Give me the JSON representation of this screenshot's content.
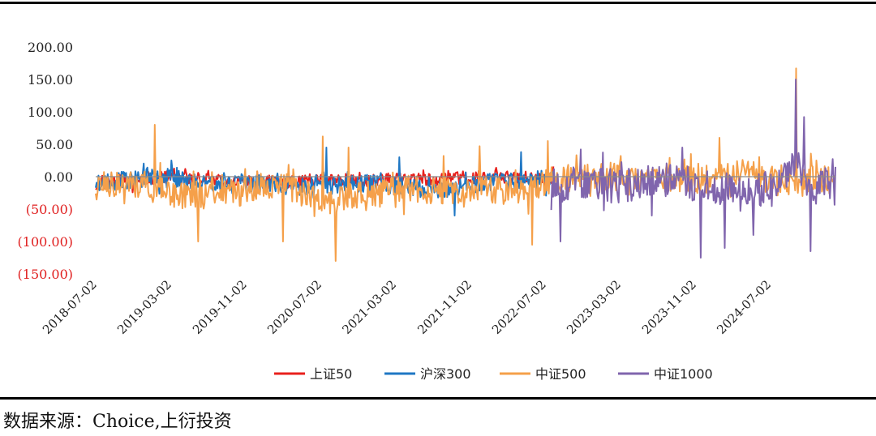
{
  "chart_data": {
    "type": "line",
    "title": "",
    "xlabel": "",
    "ylabel": "",
    "ylim": [
      -150,
      200
    ],
    "y_ticks": [
      {
        "value": 200,
        "label": "200.00",
        "color": "#222222"
      },
      {
        "value": 150,
        "label": "150.00",
        "color": "#222222"
      },
      {
        "value": 100,
        "label": "100.00",
        "color": "#222222"
      },
      {
        "value": 50,
        "label": "50.00",
        "color": "#222222"
      },
      {
        "value": 0,
        "label": "0.00",
        "color": "#222222"
      },
      {
        "value": -50,
        "label": "(50.00)",
        "color": "#e02020"
      },
      {
        "value": -100,
        "label": "(100.00)",
        "color": "#e02020"
      },
      {
        "value": -150,
        "label": "(150.00)",
        "color": "#e02020"
      }
    ],
    "x_ticks": [
      "2018-07-02",
      "2019-03-02",
      "2019-11-02",
      "2020-07-02",
      "2021-03-02",
      "2021-11-02",
      "2022-07-02",
      "2023-03-02",
      "2023-11-02",
      "2024-07-02"
    ],
    "x_range": [
      "2018-07-02",
      "2025-01-31"
    ],
    "grid": false,
    "legend_position": "bottom",
    "series": [
      {
        "name": "上证50",
        "color": "#e8201c",
        "start": "2018-07-02",
        "end": "2022-07-31",
        "noise": 10,
        "seed": 11,
        "base": [
          [
            0,
            -10
          ],
          [
            0.15,
            0
          ],
          [
            0.35,
            -10
          ],
          [
            0.5,
            -5
          ],
          [
            0.7,
            -5
          ],
          [
            0.85,
            0
          ],
          [
            1,
            -5
          ]
        ],
        "spikes": [
          [
            "2018-07-02",
            -20
          ],
          [
            "2019-04-20",
            12
          ],
          [
            "2020-07-10",
            15
          ],
          [
            "2021-06-01",
            10
          ],
          [
            "2022-05-01",
            8
          ]
        ]
      },
      {
        "name": "沪深300",
        "color": "#1f77c4",
        "start": "2018-07-02",
        "end": "2022-07-31",
        "noise": 14,
        "seed": 23,
        "base": [
          [
            0,
            -10
          ],
          [
            0.15,
            0
          ],
          [
            0.2,
            -8
          ],
          [
            0.32,
            -10
          ],
          [
            0.45,
            -15
          ],
          [
            0.6,
            -10
          ],
          [
            0.75,
            -20
          ],
          [
            0.9,
            -5
          ],
          [
            1,
            -5
          ]
        ],
        "spikes": [
          [
            "2019-03-05",
            25
          ],
          [
            "2020-07-20",
            45
          ],
          [
            "2021-03-15",
            30
          ],
          [
            "2021-09-10",
            -60
          ],
          [
            "2022-04-15",
            38
          ]
        ]
      },
      {
        "name": "中证500",
        "color": "#f5a04a",
        "start": "2018-07-02",
        "end": "2025-01-31",
        "noise": 22,
        "seed": 37,
        "base": [
          [
            0,
            -15
          ],
          [
            0.06,
            -12
          ],
          [
            0.12,
            -30
          ],
          [
            0.18,
            -25
          ],
          [
            0.25,
            -10
          ],
          [
            0.3,
            -35
          ],
          [
            0.36,
            -30
          ],
          [
            0.42,
            -20
          ],
          [
            0.5,
            -25
          ],
          [
            0.58,
            -18
          ],
          [
            0.62,
            -5
          ],
          [
            0.7,
            0
          ],
          [
            0.8,
            -5
          ],
          [
            0.88,
            5
          ],
          [
            0.93,
            -10
          ],
          [
            1,
            0
          ]
        ],
        "spikes": [
          [
            "2019-01-10",
            80
          ],
          [
            "2019-06-01",
            -100
          ],
          [
            "2020-03-01",
            -100
          ],
          [
            "2020-07-08",
            62
          ],
          [
            "2020-08-20",
            -130
          ],
          [
            "2020-10-01",
            45
          ],
          [
            "2021-08-05",
            32
          ],
          [
            "2021-12-01",
            47
          ],
          [
            "2022-05-20",
            -105
          ],
          [
            "2022-07-10",
            55
          ],
          [
            "2023-10-20",
            35
          ],
          [
            "2024-01-20",
            60
          ],
          [
            "2024-09-24",
            167
          ],
          [
            "2024-10-15",
            -30
          ],
          [
            "2024-12-01",
            25
          ]
        ]
      },
      {
        "name": "中证1000",
        "color": "#8065ad",
        "start": "2022-07-22",
        "end": "2025-01-31",
        "noise": 26,
        "seed": 53,
        "base": [
          [
            0,
            -15
          ],
          [
            0.1,
            -10
          ],
          [
            0.25,
            -15
          ],
          [
            0.4,
            -5
          ],
          [
            0.55,
            -15
          ],
          [
            0.7,
            -25
          ],
          [
            0.8,
            -10
          ],
          [
            0.87,
            20
          ],
          [
            0.92,
            -20
          ],
          [
            1,
            -5
          ]
        ],
        "spikes": [
          [
            "2022-08-20",
            -100
          ],
          [
            "2022-10-25",
            42
          ],
          [
            "2023-06-15",
            -60
          ],
          [
            "2023-09-20",
            45
          ],
          [
            "2023-11-20",
            -125
          ],
          [
            "2024-02-05",
            -110
          ],
          [
            "2024-05-10",
            -90
          ],
          [
            "2024-09-24",
            150
          ],
          [
            "2024-10-20",
            92
          ],
          [
            "2024-11-10",
            -115
          ]
        ]
      }
    ]
  },
  "source_note": "数据来源：Choice,上衍投资"
}
